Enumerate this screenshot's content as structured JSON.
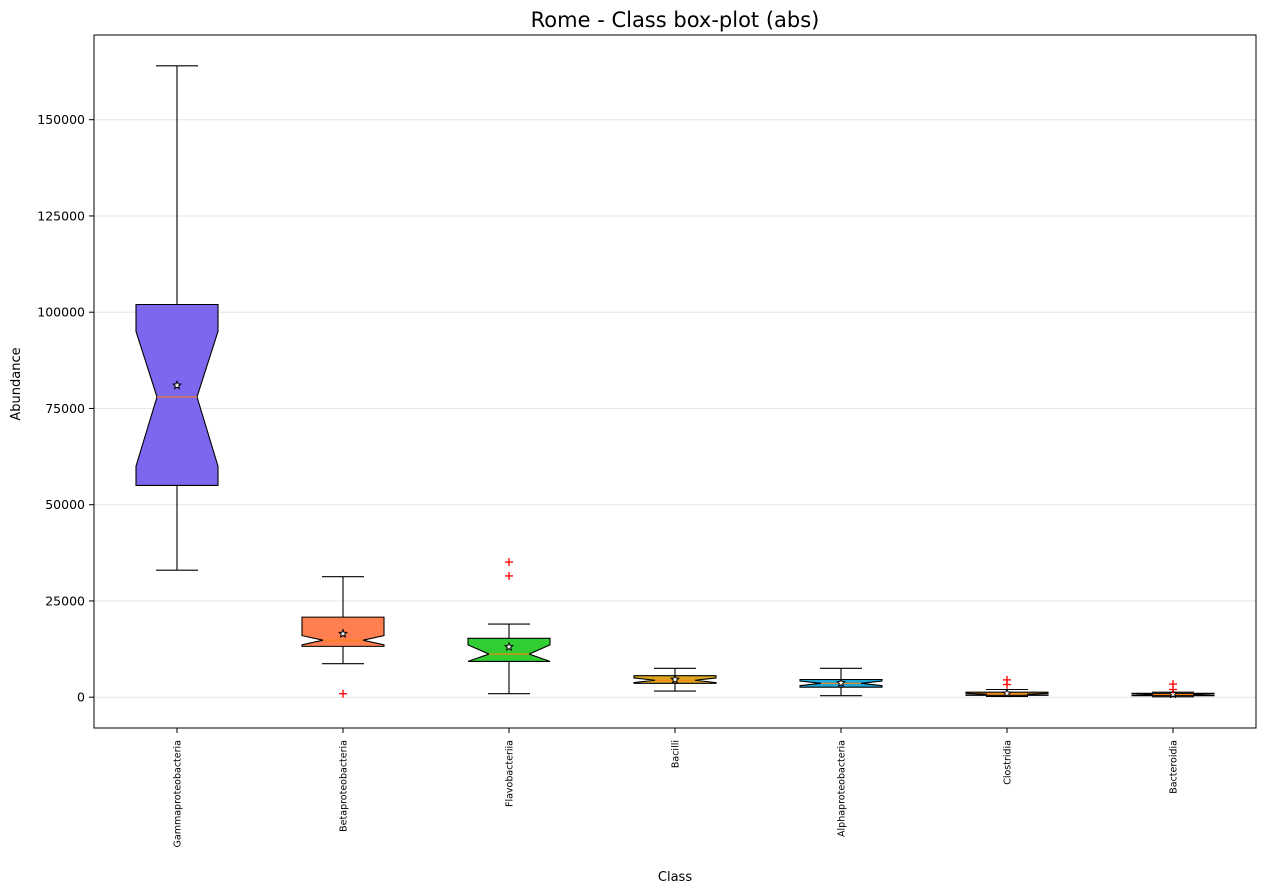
{
  "chart_data": {
    "type": "box",
    "title": "Rome - Class box-plot (abs)",
    "xlabel": "Class",
    "ylabel": "Abundance",
    "ylim": [
      -8000,
      172000
    ],
    "yticks": [
      0,
      25000,
      50000,
      75000,
      100000,
      125000,
      150000
    ],
    "ytick_labels": [
      "0",
      "25000",
      "50000",
      "75000",
      "100000",
      "125000",
      "150000"
    ],
    "grid": "horizontal",
    "notched": true,
    "mean_marker": "star",
    "outlier_marker": "+",
    "outlier_color": "#ff0000",
    "median_color": "#ff7f0e",
    "categories": [
      "Gammaproteobacteria",
      "Betaproteobacteria",
      "Flavobacteriia",
      "Bacilli",
      "Alphaproteobacteria",
      "Clostridia",
      "Bacteroidia"
    ],
    "boxes": [
      {
        "category": "Gammaproteobacteria",
        "whisker_low": 33000,
        "q1": 55000,
        "median": 78000,
        "q3": 102000,
        "whisker_high": 164000,
        "notch_low": 60000,
        "notch_high": 95000,
        "mean": 81000,
        "outliers": [],
        "color": "#7b68ee"
      },
      {
        "category": "Betaproteobacteria",
        "whisker_low": 8700,
        "q1": 13200,
        "median": 14800,
        "q3": 20800,
        "whisker_high": 31300,
        "notch_low": 13600,
        "notch_high": 16000,
        "mean": 16500,
        "outliers": [
          900
        ],
        "color": "#ff7f50"
      },
      {
        "category": "Flavobacteriia",
        "whisker_low": 900,
        "q1": 9300,
        "median": 11200,
        "q3": 15300,
        "whisker_high": 19000,
        "notch_low": 9300,
        "notch_high": 13600,
        "mean": 13100,
        "outliers": [
          31500,
          35100
        ],
        "color": "#32cd32"
      },
      {
        "category": "Bacilli",
        "whisker_low": 1600,
        "q1": 3600,
        "median": 4400,
        "q3": 5600,
        "whisker_high": 7500,
        "notch_low": 3800,
        "notch_high": 5000,
        "mean": 4600,
        "outliers": [],
        "color": "#daa520"
      },
      {
        "category": "Alphaproteobacteria",
        "whisker_low": 400,
        "q1": 2600,
        "median": 3600,
        "q3": 4600,
        "whisker_high": 7500,
        "notch_low": 3000,
        "notch_high": 4200,
        "mean": 3700,
        "outliers": [],
        "color": "#1fa9d6"
      },
      {
        "category": "Clostridia",
        "whisker_low": 200,
        "q1": 500,
        "median": 800,
        "q3": 1300,
        "whisker_high": 2000,
        "notch_low": 600,
        "notch_high": 1000,
        "mean": 1000,
        "outliers": [
          3300,
          4500
        ],
        "color": "#e69a20"
      },
      {
        "category": "Bacteroidia",
        "whisker_low": 100,
        "q1": 400,
        "median": 700,
        "q3": 1000,
        "whisker_high": 1300,
        "notch_low": 500,
        "notch_high": 900,
        "mean": 800,
        "outliers": [
          2000,
          3400
        ],
        "color": "#f4a460"
      }
    ]
  }
}
